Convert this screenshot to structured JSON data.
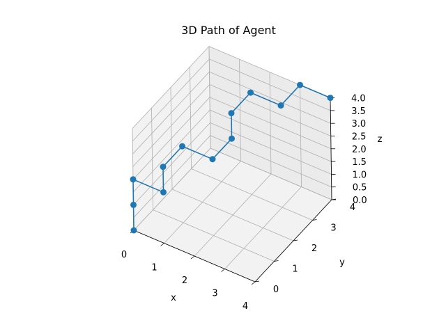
{
  "chart_data": {
    "type": "line",
    "projection": "3d",
    "title": "3D Path of Agent",
    "xlabel": "x",
    "ylabel": "y",
    "zlabel": "z",
    "xlim": [
      0,
      4
    ],
    "ylim": [
      0,
      4
    ],
    "zlim": [
      0,
      4
    ],
    "x_ticks": [
      "0",
      "1",
      "2",
      "3",
      "4"
    ],
    "y_ticks": [
      "0",
      "1",
      "2",
      "3",
      "4"
    ],
    "z_ticks": [
      "0.0",
      "0.5",
      "1.0",
      "1.5",
      "2.0",
      "2.5",
      "3.0",
      "3.5",
      "4.0"
    ],
    "grid": true,
    "marker": "circle",
    "color": "#1f77b4",
    "points": [
      {
        "x": 0,
        "y": 0,
        "z": 0
      },
      {
        "x": 0,
        "y": 0,
        "z": 1
      },
      {
        "x": 0,
        "y": 0,
        "z": 2
      },
      {
        "x": 1,
        "y": 0,
        "z": 2
      },
      {
        "x": 1,
        "y": 0,
        "z": 3
      },
      {
        "x": 1,
        "y": 1,
        "z": 3
      },
      {
        "x": 2,
        "y": 1,
        "z": 3
      },
      {
        "x": 2,
        "y": 2,
        "z": 3
      },
      {
        "x": 2,
        "y": 2,
        "z": 4
      },
      {
        "x": 2,
        "y": 3,
        "z": 4
      },
      {
        "x": 3,
        "y": 3,
        "z": 4
      },
      {
        "x": 3,
        "y": 4,
        "z": 4
      },
      {
        "x": 4,
        "y": 4,
        "z": 4
      }
    ]
  }
}
